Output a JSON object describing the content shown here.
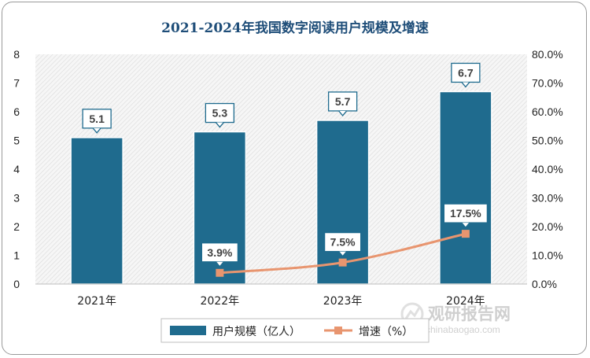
{
  "chart_data": {
    "type": "bar",
    "title": "2021-2024年我国数字阅读用户规模及增速",
    "categories": [
      "2021年",
      "2022年",
      "2023年",
      "2024年"
    ],
    "series": [
      {
        "name": "用户规模（亿人）",
        "type": "bar",
        "axis": "left",
        "values": [
          5.1,
          5.3,
          5.7,
          6.7
        ],
        "labels": [
          "5.1",
          "5.3",
          "5.7",
          "6.7"
        ],
        "color": "#1f6b8e"
      },
      {
        "name": "增速（%）",
        "type": "line",
        "axis": "right",
        "values": [
          null,
          3.9,
          7.5,
          17.5
        ],
        "labels": [
          "",
          "3.9%",
          "7.5%",
          "17.5%"
        ],
        "color": "#e8956f"
      }
    ],
    "y_left": {
      "min": 0,
      "max": 8,
      "ticks": [
        "0",
        "1",
        "2",
        "3",
        "4",
        "5",
        "6",
        "7",
        "8"
      ]
    },
    "y_right": {
      "min": 0,
      "max": 80,
      "ticks": [
        "0.0%",
        "10.0%",
        "20.0%",
        "30.0%",
        "40.0%",
        "50.0%",
        "60.0%",
        "70.0%",
        "80.0%"
      ]
    },
    "grid": false,
    "legend_position": "bottom"
  },
  "watermark": {
    "text_cn": "观研报告网",
    "text_en": "chinabaogao.com"
  }
}
